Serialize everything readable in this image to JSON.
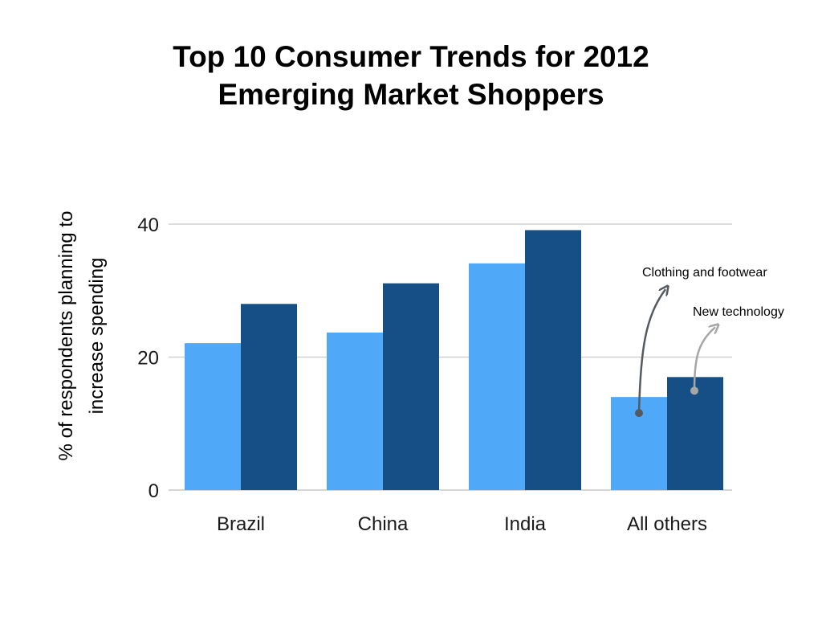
{
  "chart_data": {
    "type": "bar",
    "title": [
      "Top 10 Consumer Trends for 2012",
      "Emerging Market Shoppers"
    ],
    "xlabel": "",
    "ylabel": [
      "% of respondents planning to",
      "increase spending"
    ],
    "ylim": [
      0,
      40
    ],
    "yticks": [
      0,
      20,
      40
    ],
    "grid": true,
    "categories": [
      "Brazil",
      "China",
      "India",
      "All others"
    ],
    "series": [
      {
        "name": "Clothing and footwear",
        "color": "#4fa8f8",
        "values": [
          22.1,
          23.7,
          34.1,
          14.0
        ]
      },
      {
        "name": "New technology",
        "color": "#164f86",
        "values": [
          28.0,
          31.1,
          39.1,
          17.0
        ]
      }
    ],
    "annotations": [
      {
        "text": "Clothing and footwear",
        "series": 0,
        "category": 3,
        "arrow_color": "#555a60"
      },
      {
        "text": "New technology",
        "series": 1,
        "category": 3,
        "arrow_color": "#a6a6a6"
      }
    ]
  }
}
